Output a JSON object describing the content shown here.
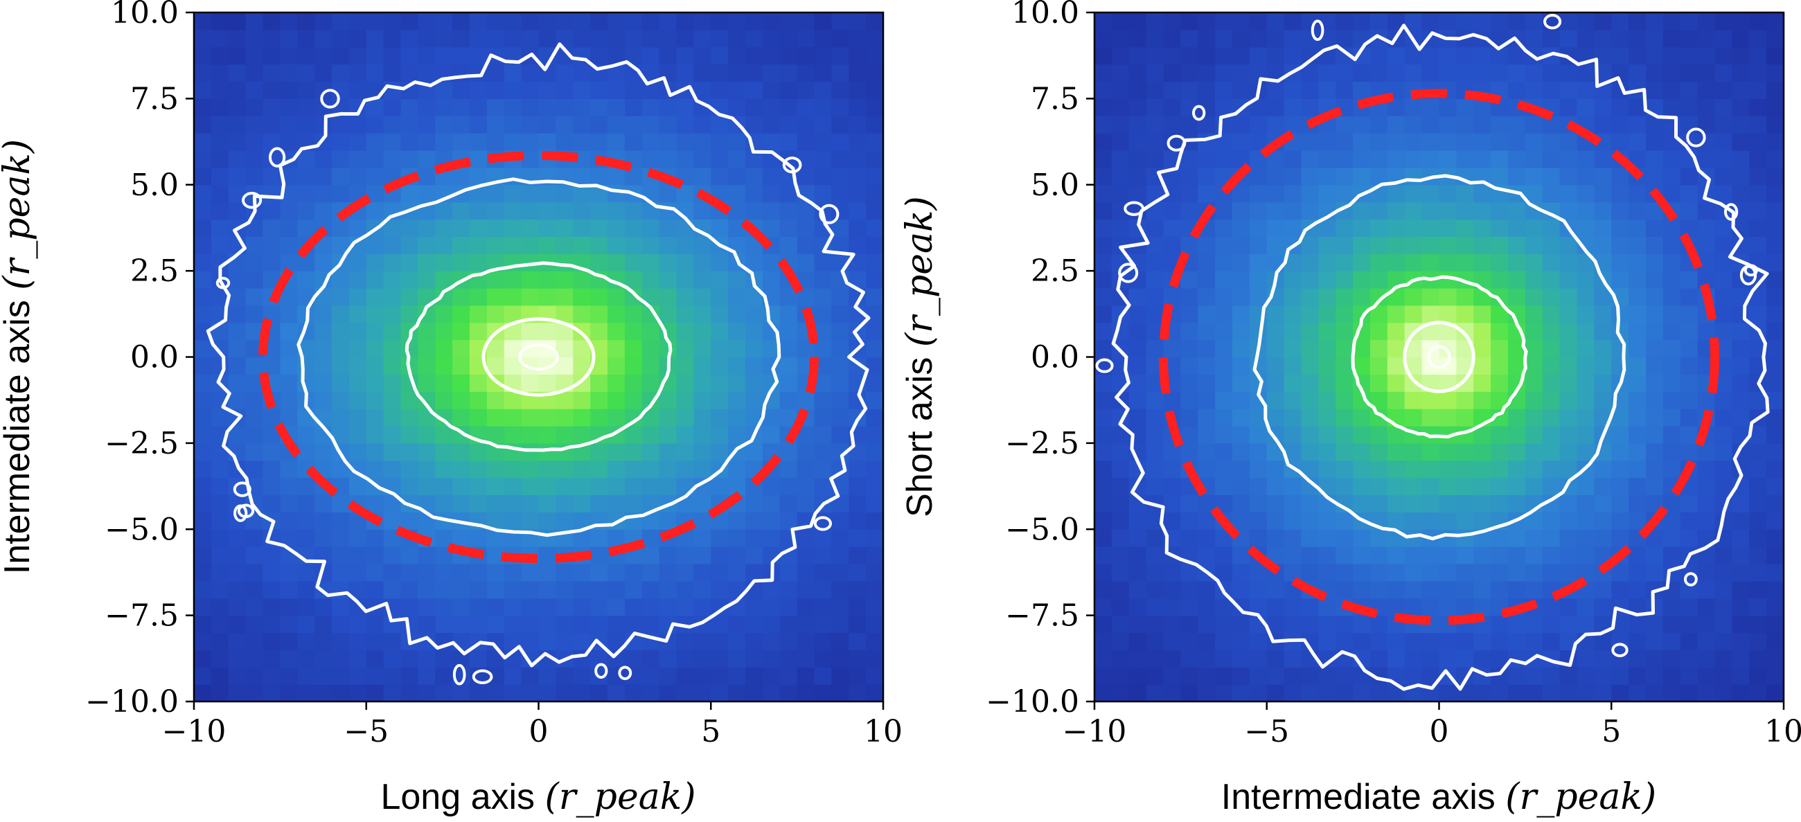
{
  "colors": {
    "background": "#20105f",
    "contour": "#ffffff",
    "ellipse": "#ff2020",
    "colormap": [
      "#20105f",
      "#1c2a9a",
      "#2650c8",
      "#2e7fd6",
      "#30a6b8",
      "#34c57a",
      "#44e04a",
      "#a6f25a",
      "#f4ffe0"
    ]
  },
  "chart_data": [
    {
      "type": "heatmap",
      "xlabel": "Long axis",
      "xlabel_unit": "(r_peak)",
      "ylabel": "Intermediate axis",
      "ylabel_unit": "(r_peak)",
      "xlim": [
        -10,
        10
      ],
      "ylim": [
        -10,
        10
      ],
      "xticks": [
        -10,
        -5,
        0,
        5,
        10
      ],
      "xtick_labels": [
        "−10",
        "−5",
        "0",
        "5",
        "10"
      ],
      "yticks": [
        10.0,
        7.5,
        5.0,
        2.5,
        0.0,
        -2.5,
        -5.0,
        -7.5,
        -10.0
      ],
      "ytick_labels": [
        "10.0",
        "7.5",
        "5.0",
        "2.5",
        "0.0",
        "−2.5",
        "−5.0",
        "−7.5",
        "−10.0"
      ],
      "density_scale": {
        "x": 3.0,
        "y": 2.3
      },
      "contours": [
        {
          "level": "outer",
          "semi_axes": [
            9.3,
            8.7
          ],
          "noise": 0.45
        },
        {
          "level": "mid",
          "semi_axes": [
            6.9,
            5.1
          ],
          "noise": 0.15
        },
        {
          "level": "inner",
          "semi_axes": [
            3.8,
            2.7
          ],
          "noise": 0.06
        },
        {
          "level": "core",
          "semi_axes": [
            1.6,
            1.1
          ],
          "noise": 0.0
        },
        {
          "level": "peak",
          "semi_axes": [
            0.55,
            0.35
          ],
          "noise": 0.0
        }
      ],
      "ellipse": {
        "center": [
          0,
          0
        ],
        "semi_axes": [
          8.0,
          5.85
        ],
        "style": "dashed"
      }
    },
    {
      "type": "heatmap",
      "xlabel": "Intermediate axis",
      "xlabel_unit": "(r_peak)",
      "ylabel": "Short axis",
      "ylabel_unit": "(r_peak)",
      "xlim": [
        -10,
        10
      ],
      "ylim": [
        -10,
        10
      ],
      "xticks": [
        -10,
        -5,
        0,
        5,
        10
      ],
      "xtick_labels": [
        "−10",
        "−5",
        "0",
        "5",
        "10"
      ],
      "yticks": [
        10.0,
        7.5,
        5.0,
        2.5,
        0.0,
        -2.5,
        -5.0,
        -7.5,
        -10.0
      ],
      "ytick_labels": [
        "10.0",
        "7.5",
        "5.0",
        "2.5",
        "0.0",
        "−2.5",
        "−5.0",
        "−7.5",
        "−10.0"
      ],
      "density_scale": {
        "x": 2.5,
        "y": 2.4
      },
      "contours": [
        {
          "level": "outer",
          "semi_axes": [
            9.4,
            9.3
          ],
          "noise": 0.45
        },
        {
          "level": "mid",
          "semi_axes": [
            5.3,
            5.2
          ],
          "noise": 0.12
        },
        {
          "level": "inner",
          "semi_axes": [
            2.5,
            2.3
          ],
          "noise": 0.05
        },
        {
          "level": "core",
          "semi_axes": [
            1.0,
            1.0
          ],
          "noise": 0.0
        },
        {
          "level": "peak",
          "semi_axes": [
            0.3,
            0.3
          ],
          "noise": 0.0
        }
      ],
      "ellipse": {
        "center": [
          0,
          0
        ],
        "semi_axes": [
          8.0,
          7.65
        ],
        "style": "dashed"
      }
    }
  ]
}
